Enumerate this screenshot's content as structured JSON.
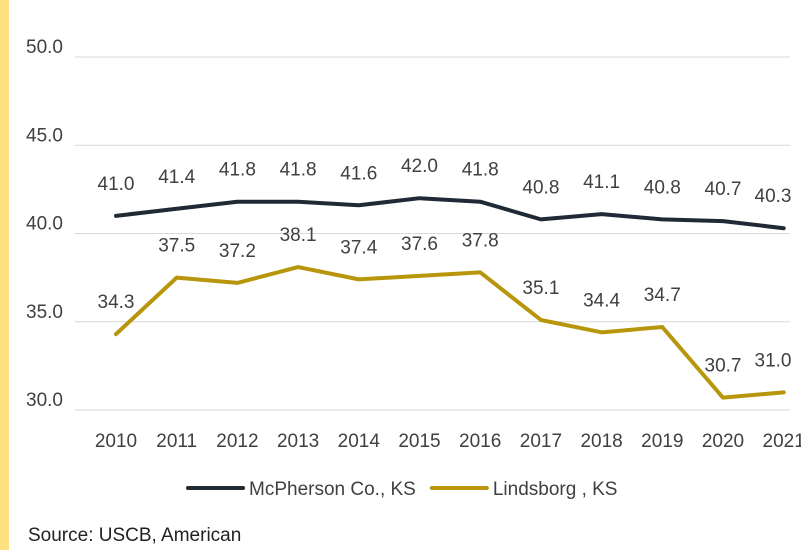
{
  "colors": {
    "accent": "#ffe082",
    "grid": "#d9d9d9",
    "text": "#404040"
  },
  "chart_data": {
    "type": "line",
    "title": "",
    "xlabel": "",
    "ylabel": "",
    "x": [
      "2010",
      "2011",
      "2012",
      "2013",
      "2014",
      "2015",
      "2016",
      "2017",
      "2018",
      "2019",
      "2020",
      "2021"
    ],
    "ylim": [
      30,
      50
    ],
    "yticks": [
      "30.0",
      "35.0",
      "40.0",
      "45.0",
      "50.0"
    ],
    "grid": true,
    "legend_position": "bottom",
    "series": [
      {
        "name": "McPherson Co., KS",
        "color": "#1f2a36",
        "values": [
          41.0,
          41.4,
          41.8,
          41.8,
          41.6,
          42.0,
          41.8,
          40.8,
          41.1,
          40.8,
          40.7,
          40.3
        ],
        "labels": [
          "41.0",
          "41.4",
          "41.8",
          "41.8",
          "41.6",
          "42.0",
          "41.8",
          "40.8",
          "41.1",
          "40.8",
          "40.7",
          "40.3"
        ]
      },
      {
        "name": "Lindsborg , KS",
        "color": "#b8960c",
        "values": [
          34.3,
          37.5,
          37.2,
          38.1,
          37.4,
          37.6,
          37.8,
          35.1,
          34.4,
          34.7,
          30.7,
          31.0
        ],
        "labels": [
          "34.3",
          "37.5",
          "37.2",
          "38.1",
          "37.4",
          "37.6",
          "37.8",
          "35.1",
          "34.4",
          "34.7",
          "30.7",
          "31.0"
        ]
      }
    ]
  },
  "footer": {
    "source": "Source: USCB, American"
  }
}
